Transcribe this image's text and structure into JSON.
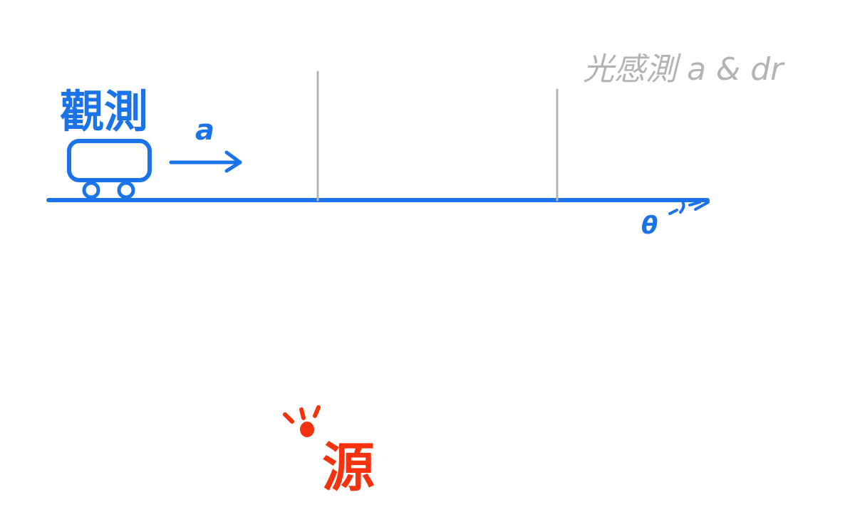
{
  "labels": {
    "observer": "觀測",
    "acceleration": "a",
    "sensor_note": "光感測 a & dr",
    "angle_label": "θ",
    "source": "源"
  },
  "colors": {
    "blue": "#1a73e8",
    "gray": "#b3b3b3",
    "red": "#f4330e",
    "background": "#ffffff"
  },
  "icons": {
    "cart": "cart-icon",
    "arrow": "arrow-right-icon",
    "source_burst": "light-burst-icon"
  }
}
